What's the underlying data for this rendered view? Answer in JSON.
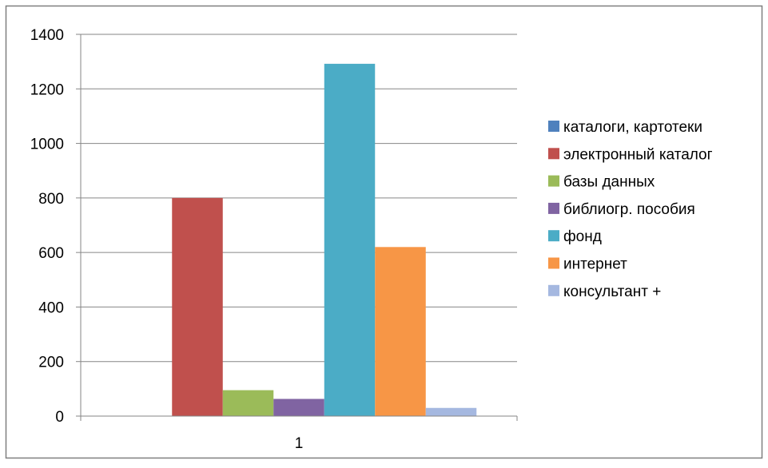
{
  "chart_data": {
    "type": "bar",
    "title": "",
    "xlabel": "",
    "ylabel": "",
    "categories": [
      "1"
    ],
    "ylim": [
      0,
      1400
    ],
    "yticks": [
      0,
      200,
      400,
      600,
      800,
      1000,
      1200,
      1400
    ],
    "grid": true,
    "legend_position": "right",
    "series": [
      {
        "name": "каталоги, картотеки",
        "values": [
          0
        ],
        "color": "#4F81BD"
      },
      {
        "name": "электронный каталог",
        "values": [
          800
        ],
        "color": "#C0504D"
      },
      {
        "name": "базы данных",
        "values": [
          95
        ],
        "color": "#9BBB59"
      },
      {
        "name": "библиогр. пособия",
        "values": [
          63
        ],
        "color": "#8064A2"
      },
      {
        "name": "фонд",
        "values": [
          1292
        ],
        "color": "#4BACC6"
      },
      {
        "name": "интернет",
        "values": [
          620
        ],
        "color": "#F79646"
      },
      {
        "name": "консультант +",
        "values": [
          30
        ],
        "color": "#A5B8E0"
      }
    ]
  }
}
